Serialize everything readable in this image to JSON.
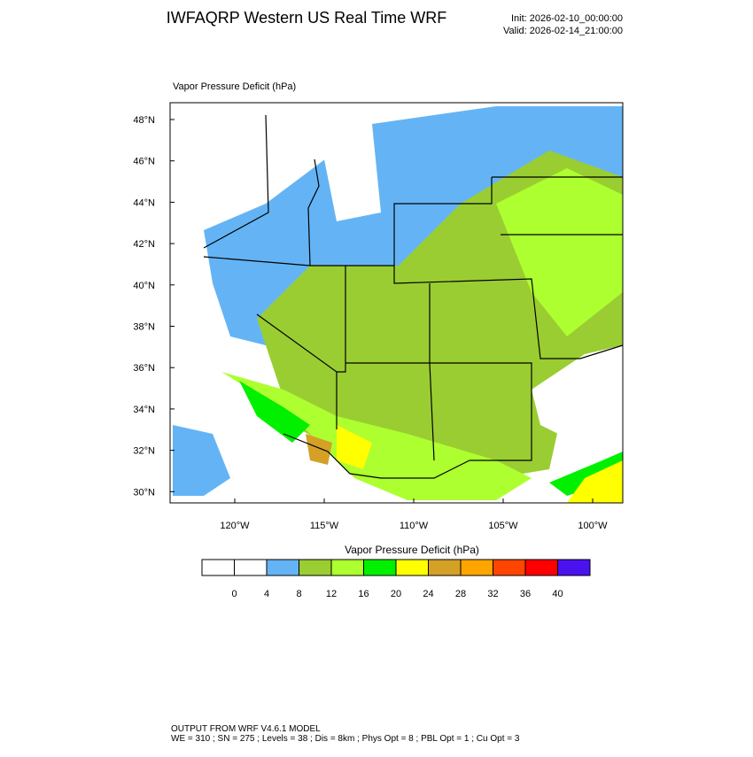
{
  "header": {
    "title": "IWFAQRP Western US Real Time WRF",
    "init": "Init: 2026-02-10_00:00:00",
    "valid": "Valid: 2026-02-14_21:00:00"
  },
  "map": {
    "title": "Vapor Pressure Deficit   (hPa)",
    "lat_labels": [
      "48°N",
      "46°N",
      "44°N",
      "42°N",
      "40°N",
      "38°N",
      "36°N",
      "34°N",
      "32°N",
      "30°N"
    ],
    "lon_labels": [
      "120°W",
      "115°W",
      "110°W",
      "105°W",
      "100°W"
    ]
  },
  "colorbar": {
    "title": "Vapor Pressure Deficit  (hPa)",
    "colors": [
      "#ffffff",
      "#ffffff",
      "#64b4f5",
      "#9acd32",
      "#adff2f",
      "#00f000",
      "#ffff00",
      "#d4a026",
      "#ffa500",
      "#ff4500",
      "#ff0000",
      "#4b12f0"
    ],
    "labels": [
      0,
      4,
      8,
      12,
      16,
      20,
      24,
      28,
      32,
      36,
      40
    ]
  },
  "footer": {
    "line1": "OUTPUT FROM WRF V4.6.1 MODEL",
    "line2": "WE = 310 ; SN = 275 ; Levels = 38 ; Dis = 8km ; Phys Opt = 8 ; PBL Opt = 1 ; Cu Opt = 3"
  }
}
